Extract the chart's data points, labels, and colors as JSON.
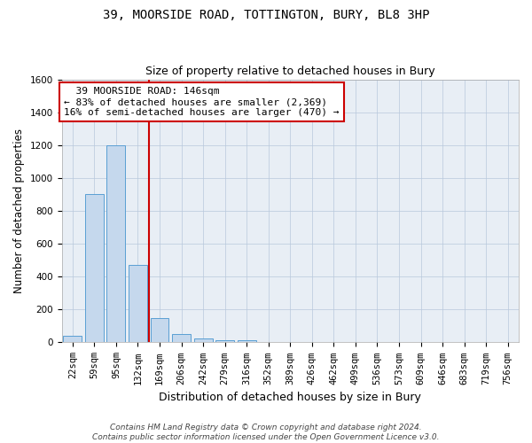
{
  "title1": "39, MOORSIDE ROAD, TOTTINGTON, BURY, BL8 3HP",
  "title2": "Size of property relative to detached houses in Bury",
  "xlabel": "Distribution of detached houses by size in Bury",
  "ylabel": "Number of detached properties",
  "categories": [
    "22sqm",
    "59sqm",
    "95sqm",
    "132sqm",
    "169sqm",
    "206sqm",
    "242sqm",
    "279sqm",
    "316sqm",
    "352sqm",
    "389sqm",
    "426sqm",
    "462sqm",
    "499sqm",
    "536sqm",
    "573sqm",
    "609sqm",
    "646sqm",
    "683sqm",
    "719sqm",
    "756sqm"
  ],
  "values": [
    40,
    900,
    1200,
    470,
    150,
    50,
    25,
    15,
    15,
    0,
    0,
    0,
    0,
    0,
    0,
    0,
    0,
    0,
    0,
    0,
    0
  ],
  "bar_color": "#c5d8ed",
  "bar_edge_color": "#5a9fd4",
  "vline_x": 3.5,
  "vline_color": "#cc0000",
  "annotation_text": "  39 MOORSIDE ROAD: 146sqm\n← 83% of detached houses are smaller (2,369)\n16% of semi-detached houses are larger (470) →",
  "annotation_box_color": "#ffffff",
  "annotation_box_edge_color": "#cc0000",
  "ylim": [
    0,
    1600
  ],
  "yticks": [
    0,
    200,
    400,
    600,
    800,
    1000,
    1200,
    1400,
    1600
  ],
  "footer": "Contains HM Land Registry data © Crown copyright and database right 2024.\nContains public sector information licensed under the Open Government Licence v3.0.",
  "bg_color": "#e8eef5",
  "title_fontsize": 10,
  "subtitle_fontsize": 9,
  "tick_fontsize": 7.5,
  "annotation_fontsize": 8
}
